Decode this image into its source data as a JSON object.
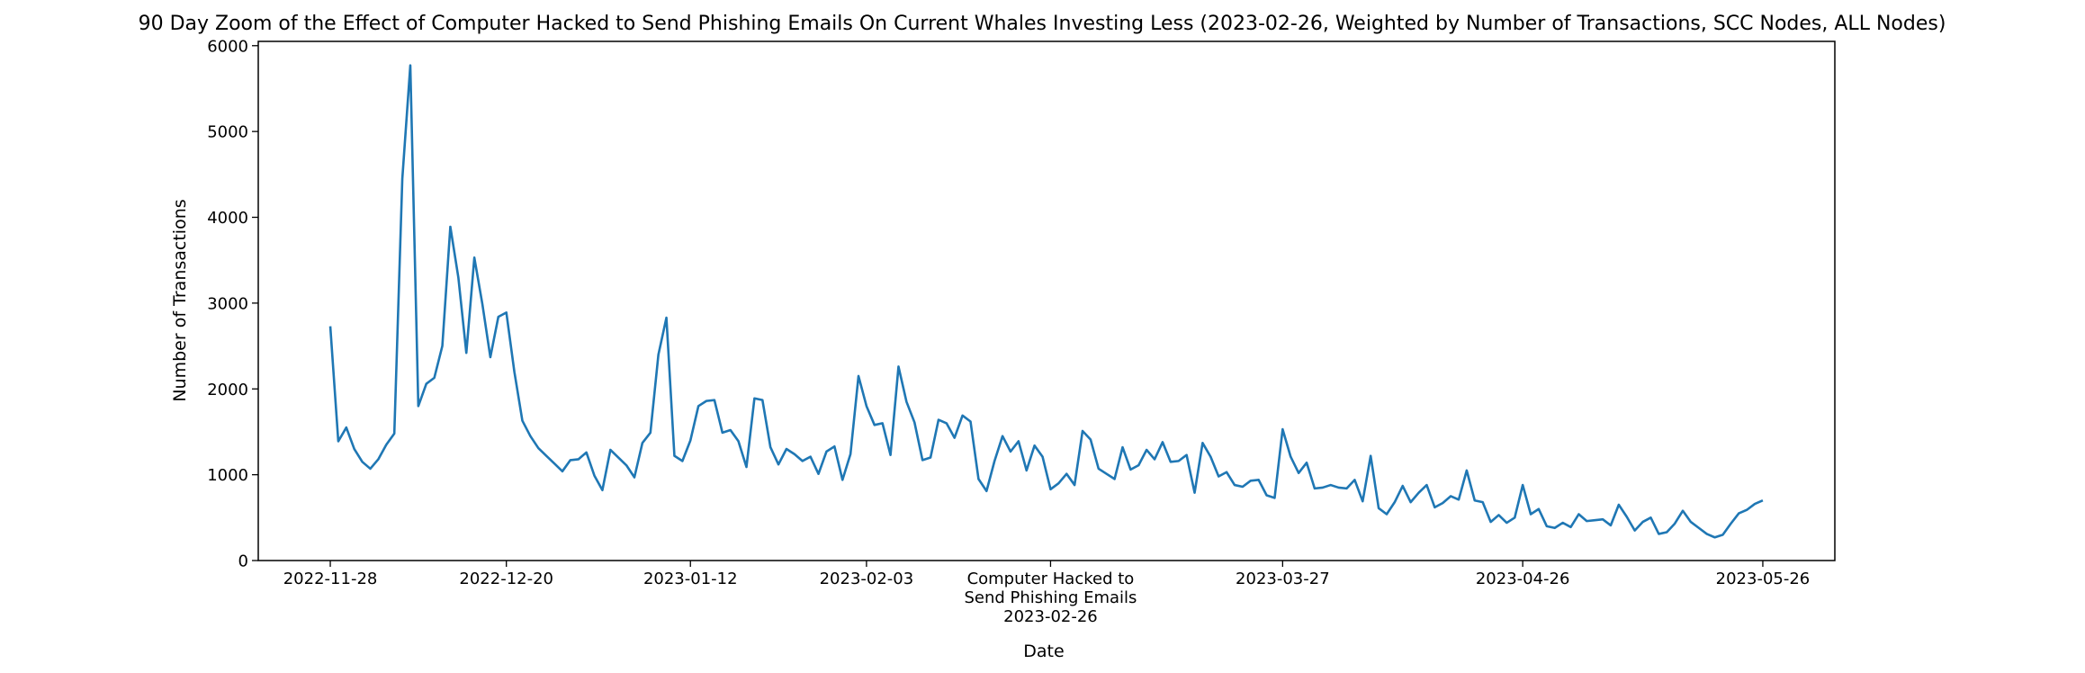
{
  "chart_data": {
    "type": "line",
    "title": "90 Day Zoom of the Effect of Computer Hacked to Send Phishing Emails On Current Whales Investing Less (2023-02-26, Weighted by Number of Transactions, SCC Nodes, ALL Nodes)",
    "xlabel": "Date",
    "ylabel": "Number of Transactions",
    "ylim": [
      0,
      6050
    ],
    "xlim": [
      "2022-11-19",
      "2023-06-04"
    ],
    "grid": false,
    "legend": "none",
    "color": "#1f77b4",
    "y_ticks": [
      0,
      1000,
      2000,
      3000,
      4000,
      5000,
      6000
    ],
    "x_ticks": [
      {
        "date": "2022-11-28",
        "lines": [
          "2022-11-28"
        ]
      },
      {
        "date": "2022-12-20",
        "lines": [
          "2022-12-20"
        ]
      },
      {
        "date": "2023-01-12",
        "lines": [
          "2023-01-12"
        ]
      },
      {
        "date": "2023-02-03",
        "lines": [
          "2023-02-03"
        ]
      },
      {
        "date": "2023-02-26",
        "lines": [
          "Computer Hacked to",
          "Send Phishing Emails",
          "2023-02-26"
        ]
      },
      {
        "date": "2023-03-27",
        "lines": [
          "2023-03-27"
        ]
      },
      {
        "date": "2023-04-26",
        "lines": [
          "2023-04-26"
        ]
      },
      {
        "date": "2023-05-26",
        "lines": [
          "2023-05-26"
        ]
      }
    ],
    "series": [
      {
        "values": [
          [
            "2022-11-28",
            2730
          ],
          [
            "2022-11-29",
            1390
          ],
          [
            "2022-11-30",
            1550
          ],
          [
            "2022-12-01",
            1300
          ],
          [
            "2022-12-02",
            1150
          ],
          [
            "2022-12-03",
            1070
          ],
          [
            "2022-12-04",
            1180
          ],
          [
            "2022-12-05",
            1350
          ],
          [
            "2022-12-06",
            1480
          ],
          [
            "2022-12-07",
            4450
          ],
          [
            "2022-12-08",
            5770
          ],
          [
            "2022-12-09",
            1800
          ],
          [
            "2022-12-10",
            2060
          ],
          [
            "2022-12-11",
            2130
          ],
          [
            "2022-12-12",
            2500
          ],
          [
            "2022-12-13",
            3890
          ],
          [
            "2022-12-14",
            3300
          ],
          [
            "2022-12-15",
            2420
          ],
          [
            "2022-12-16",
            3530
          ],
          [
            "2022-12-17",
            2990
          ],
          [
            "2022-12-18",
            2370
          ],
          [
            "2022-12-19",
            2840
          ],
          [
            "2022-12-20",
            2890
          ],
          [
            "2022-12-21",
            2200
          ],
          [
            "2022-12-22",
            1630
          ],
          [
            "2022-12-23",
            1450
          ],
          [
            "2022-12-24",
            1310
          ],
          [
            "2022-12-25",
            1220
          ],
          [
            "2022-12-26",
            1130
          ],
          [
            "2022-12-27",
            1040
          ],
          [
            "2022-12-28",
            1170
          ],
          [
            "2022-12-29",
            1180
          ],
          [
            "2022-12-30",
            1260
          ],
          [
            "2022-12-31",
            990
          ],
          [
            "2023-01-01",
            820
          ],
          [
            "2023-01-02",
            1290
          ],
          [
            "2023-01-03",
            1200
          ],
          [
            "2023-01-04",
            1110
          ],
          [
            "2023-01-05",
            970
          ],
          [
            "2023-01-06",
            1370
          ],
          [
            "2023-01-07",
            1490
          ],
          [
            "2023-01-08",
            2400
          ],
          [
            "2023-01-09",
            2830
          ],
          [
            "2023-01-10",
            1220
          ],
          [
            "2023-01-11",
            1160
          ],
          [
            "2023-01-12",
            1400
          ],
          [
            "2023-01-13",
            1800
          ],
          [
            "2023-01-14",
            1860
          ],
          [
            "2023-01-15",
            1870
          ],
          [
            "2023-01-16",
            1490
          ],
          [
            "2023-01-17",
            1520
          ],
          [
            "2023-01-18",
            1390
          ],
          [
            "2023-01-19",
            1090
          ],
          [
            "2023-01-20",
            1890
          ],
          [
            "2023-01-21",
            1870
          ],
          [
            "2023-01-22",
            1320
          ],
          [
            "2023-01-23",
            1120
          ],
          [
            "2023-01-24",
            1300
          ],
          [
            "2023-01-25",
            1240
          ],
          [
            "2023-01-26",
            1160
          ],
          [
            "2023-01-27",
            1210
          ],
          [
            "2023-01-28",
            1010
          ],
          [
            "2023-01-29",
            1270
          ],
          [
            "2023-01-30",
            1330
          ],
          [
            "2023-01-31",
            940
          ],
          [
            "2023-02-01",
            1240
          ],
          [
            "2023-02-02",
            2150
          ],
          [
            "2023-02-03",
            1800
          ],
          [
            "2023-02-04",
            1580
          ],
          [
            "2023-02-05",
            1600
          ],
          [
            "2023-02-06",
            1230
          ],
          [
            "2023-02-07",
            2260
          ],
          [
            "2023-02-08",
            1850
          ],
          [
            "2023-02-09",
            1610
          ],
          [
            "2023-02-10",
            1170
          ],
          [
            "2023-02-11",
            1200
          ],
          [
            "2023-02-12",
            1640
          ],
          [
            "2023-02-13",
            1600
          ],
          [
            "2023-02-14",
            1430
          ],
          [
            "2023-02-15",
            1690
          ],
          [
            "2023-02-16",
            1620
          ],
          [
            "2023-02-17",
            950
          ],
          [
            "2023-02-18",
            810
          ],
          [
            "2023-02-19",
            1160
          ],
          [
            "2023-02-20",
            1450
          ],
          [
            "2023-02-21",
            1270
          ],
          [
            "2023-02-22",
            1390
          ],
          [
            "2023-02-23",
            1050
          ],
          [
            "2023-02-24",
            1340
          ],
          [
            "2023-02-25",
            1210
          ],
          [
            "2023-02-26",
            830
          ],
          [
            "2023-02-27",
            900
          ],
          [
            "2023-02-28",
            1010
          ],
          [
            "2023-03-01",
            880
          ],
          [
            "2023-03-02",
            1510
          ],
          [
            "2023-03-03",
            1410
          ],
          [
            "2023-03-04",
            1070
          ],
          [
            "2023-03-05",
            1010
          ],
          [
            "2023-03-06",
            950
          ],
          [
            "2023-03-07",
            1320
          ],
          [
            "2023-03-08",
            1060
          ],
          [
            "2023-03-09",
            1110
          ],
          [
            "2023-03-10",
            1290
          ],
          [
            "2023-03-11",
            1180
          ],
          [
            "2023-03-12",
            1380
          ],
          [
            "2023-03-13",
            1150
          ],
          [
            "2023-03-14",
            1160
          ],
          [
            "2023-03-15",
            1230
          ],
          [
            "2023-03-16",
            790
          ],
          [
            "2023-03-17",
            1370
          ],
          [
            "2023-03-18",
            1210
          ],
          [
            "2023-03-19",
            980
          ],
          [
            "2023-03-20",
            1030
          ],
          [
            "2023-03-21",
            880
          ],
          [
            "2023-03-22",
            860
          ],
          [
            "2023-03-23",
            930
          ],
          [
            "2023-03-24",
            940
          ],
          [
            "2023-03-25",
            760
          ],
          [
            "2023-03-26",
            730
          ],
          [
            "2023-03-27",
            1530
          ],
          [
            "2023-03-28",
            1210
          ],
          [
            "2023-03-29",
            1020
          ],
          [
            "2023-03-30",
            1140
          ],
          [
            "2023-03-31",
            840
          ],
          [
            "2023-04-01",
            850
          ],
          [
            "2023-04-02",
            880
          ],
          [
            "2023-04-03",
            850
          ],
          [
            "2023-04-04",
            840
          ],
          [
            "2023-04-05",
            940
          ],
          [
            "2023-04-06",
            690
          ],
          [
            "2023-04-07",
            1220
          ],
          [
            "2023-04-08",
            610
          ],
          [
            "2023-04-09",
            540
          ],
          [
            "2023-04-10",
            680
          ],
          [
            "2023-04-11",
            870
          ],
          [
            "2023-04-12",
            680
          ],
          [
            "2023-04-13",
            790
          ],
          [
            "2023-04-14",
            880
          ],
          [
            "2023-04-15",
            620
          ],
          [
            "2023-04-16",
            670
          ],
          [
            "2023-04-17",
            750
          ],
          [
            "2023-04-18",
            710
          ],
          [
            "2023-04-19",
            1050
          ],
          [
            "2023-04-20",
            700
          ],
          [
            "2023-04-21",
            680
          ],
          [
            "2023-04-22",
            450
          ],
          [
            "2023-04-23",
            530
          ],
          [
            "2023-04-24",
            440
          ],
          [
            "2023-04-25",
            500
          ],
          [
            "2023-04-26",
            880
          ],
          [
            "2023-04-27",
            540
          ],
          [
            "2023-04-28",
            600
          ],
          [
            "2023-04-29",
            400
          ],
          [
            "2023-04-30",
            380
          ],
          [
            "2023-05-01",
            440
          ],
          [
            "2023-05-02",
            390
          ],
          [
            "2023-05-03",
            540
          ],
          [
            "2023-05-04",
            460
          ],
          [
            "2023-05-05",
            470
          ],
          [
            "2023-05-06",
            480
          ],
          [
            "2023-05-07",
            410
          ],
          [
            "2023-05-08",
            650
          ],
          [
            "2023-05-09",
            510
          ],
          [
            "2023-05-10",
            350
          ],
          [
            "2023-05-11",
            450
          ],
          [
            "2023-05-12",
            500
          ],
          [
            "2023-05-13",
            310
          ],
          [
            "2023-05-14",
            330
          ],
          [
            "2023-05-15",
            430
          ],
          [
            "2023-05-16",
            580
          ],
          [
            "2023-05-17",
            450
          ],
          [
            "2023-05-18",
            380
          ],
          [
            "2023-05-19",
            310
          ],
          [
            "2023-05-20",
            270
          ],
          [
            "2023-05-21",
            300
          ],
          [
            "2023-05-22",
            430
          ],
          [
            "2023-05-23",
            550
          ],
          [
            "2023-05-24",
            590
          ],
          [
            "2023-05-25",
            660
          ],
          [
            "2023-05-26",
            700
          ]
        ]
      }
    ]
  }
}
